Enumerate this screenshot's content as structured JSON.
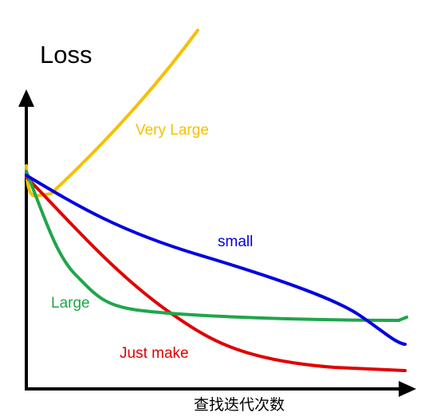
{
  "y_axis_label": "Loss",
  "x_axis_label": "查找迭代次数",
  "curve_labels": {
    "very_large": "Very Large",
    "small": "small",
    "large": "Large",
    "just_make": "Just make"
  }
}
